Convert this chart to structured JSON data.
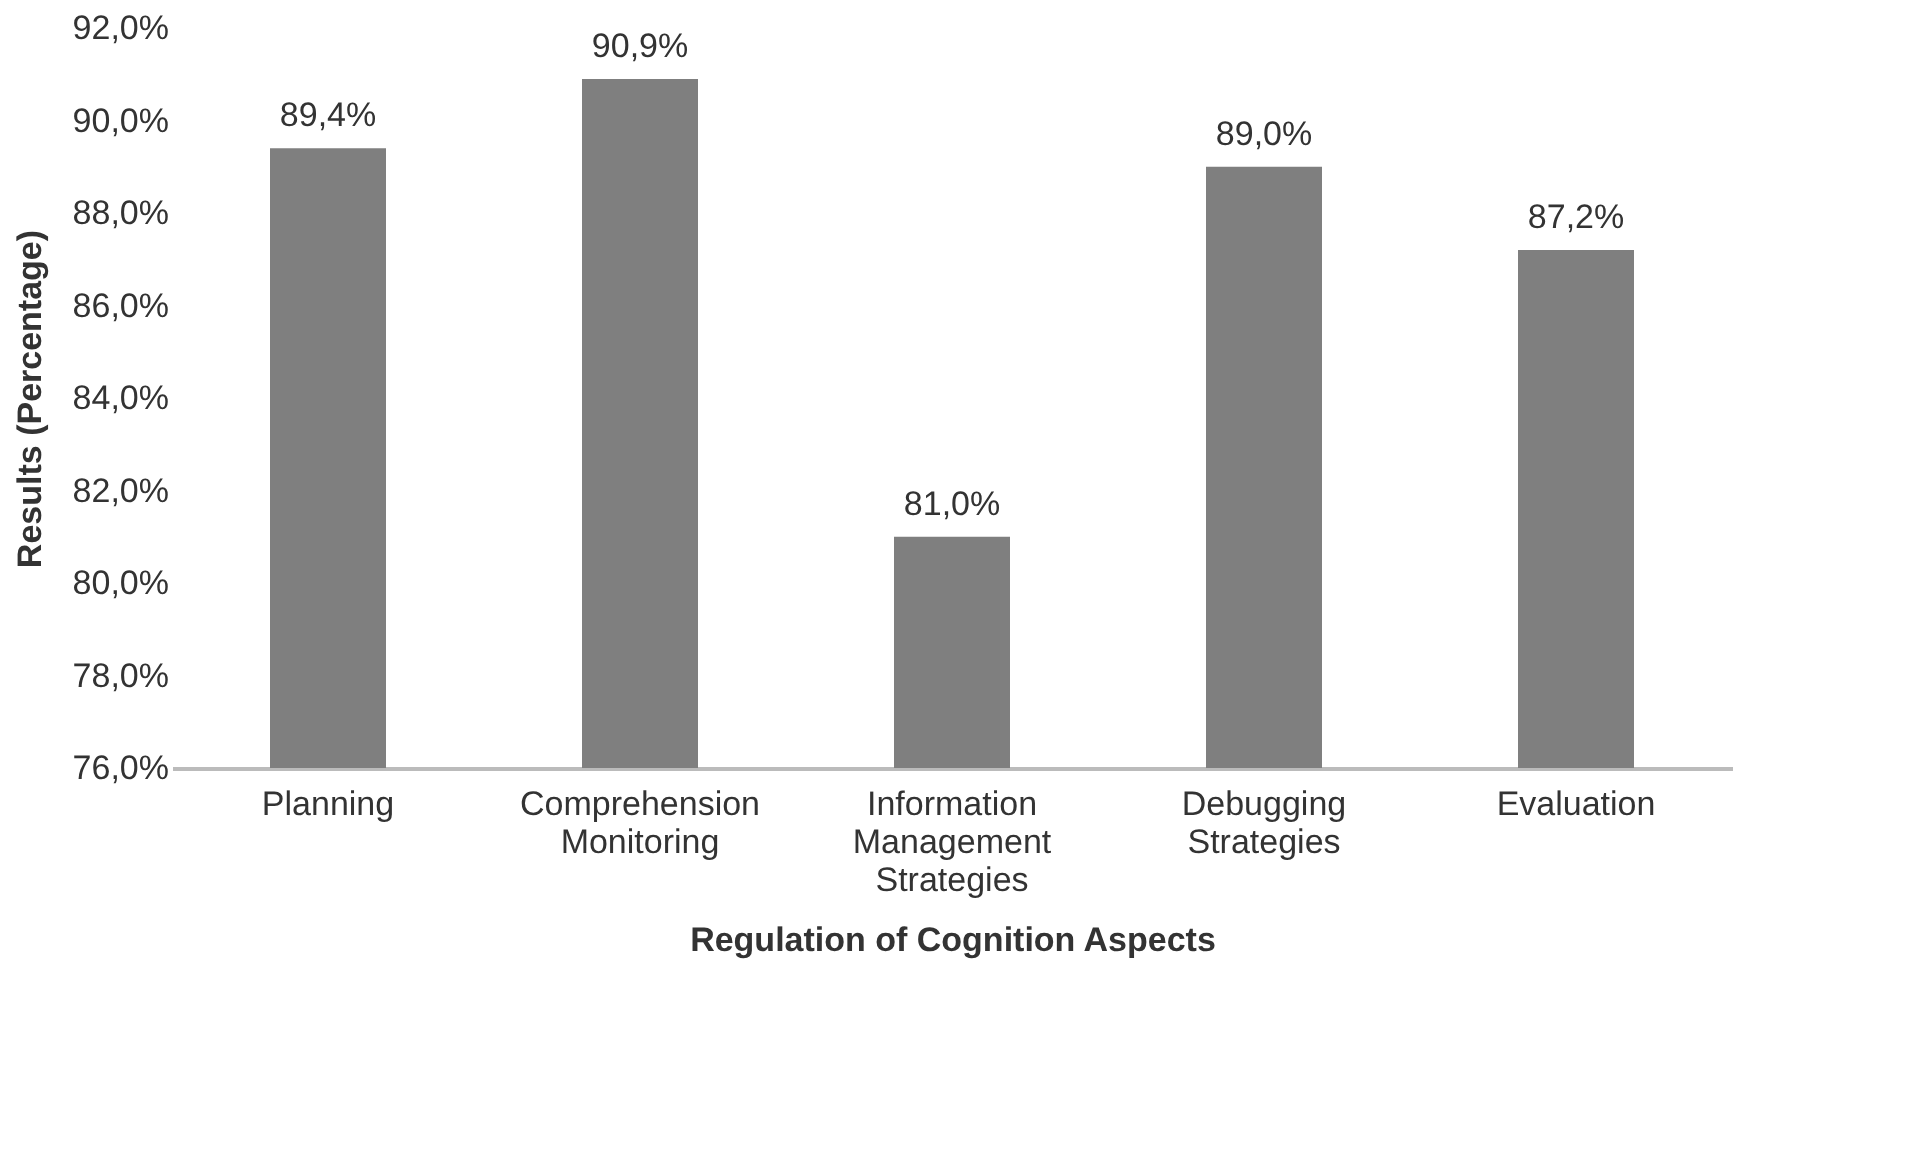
{
  "chart_data": {
    "type": "bar",
    "categories": [
      "Planning",
      "Comprehension Monitoring",
      "Information Management Strategies",
      "Debugging Strategies",
      "Evaluation"
    ],
    "values": [
      89.4,
      90.9,
      81.0,
      89.0,
      87.2
    ],
    "value_labels": [
      "89,4%",
      "90,9%",
      "81,0%",
      "89,0%",
      "87,2%"
    ],
    "color": "#7f7f7f",
    "xlabel": "Regulation of Cognition Aspects",
    "ylabel": "Results (Percentage)",
    "ylim": [
      76,
      92
    ],
    "yticks": [
      {
        "value": 76,
        "label": "76,0%"
      },
      {
        "value": 78,
        "label": "78,0%"
      },
      {
        "value": 80,
        "label": "80,0%"
      },
      {
        "value": 82,
        "label": "82,0%"
      },
      {
        "value": 84,
        "label": "84,0%"
      },
      {
        "value": 86,
        "label": "86,0%"
      },
      {
        "value": 88,
        "label": "88,0%"
      },
      {
        "value": 90,
        "label": "90,0%"
      },
      {
        "value": 92,
        "label": "92,0%"
      }
    ],
    "grid": false
  }
}
